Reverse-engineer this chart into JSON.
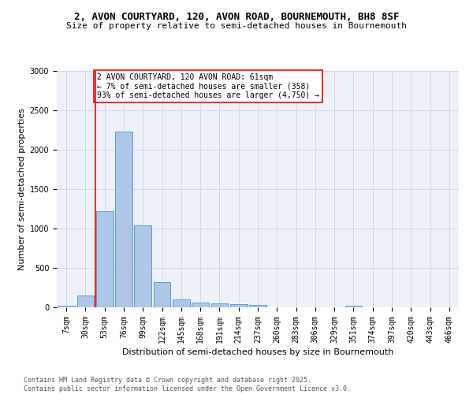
{
  "title_line1": "2, AVON COURTYARD, 120, AVON ROAD, BOURNEMOUTH, BH8 8SF",
  "title_line2": "Size of property relative to semi-detached houses in Bournemouth",
  "xlabel": "Distribution of semi-detached houses by size in Bournemouth",
  "ylabel": "Number of semi-detached properties",
  "footnote": "Contains HM Land Registry data © Crown copyright and database right 2025.\nContains public sector information licensed under the Open Government Licence v3.0.",
  "bin_labels": [
    "7sqm",
    "30sqm",
    "53sqm",
    "76sqm",
    "99sqm",
    "122sqm",
    "145sqm",
    "168sqm",
    "191sqm",
    "214sqm",
    "237sqm",
    "260sqm",
    "283sqm",
    "306sqm",
    "329sqm",
    "351sqm",
    "374sqm",
    "397sqm",
    "420sqm",
    "443sqm",
    "466sqm"
  ],
  "bar_values": [
    20,
    150,
    1220,
    2230,
    1040,
    320,
    100,
    60,
    55,
    40,
    30,
    0,
    0,
    0,
    0,
    25,
    0,
    0,
    0,
    0,
    0
  ],
  "bar_color": "#aec6e8",
  "bar_edge_color": "#5b9bd5",
  "grid_color": "#d0d8e8",
  "background_color": "#eef2f8",
  "annotation_text": "2 AVON COURTYARD, 120 AVON ROAD: 61sqm\n← 7% of semi-detached houses are smaller (358)\n93% of semi-detached houses are larger (4,750) →",
  "ylim": [
    0,
    3000
  ],
  "yticks": [
    0,
    500,
    1000,
    1500,
    2000,
    2500,
    3000
  ],
  "red_line_bin_index": 2,
  "title_fontsize": 9,
  "subtitle_fontsize": 8,
  "footnote_fontsize": 6,
  "axis_label_fontsize": 8,
  "tick_fontsize": 7,
  "annotation_fontsize": 7
}
